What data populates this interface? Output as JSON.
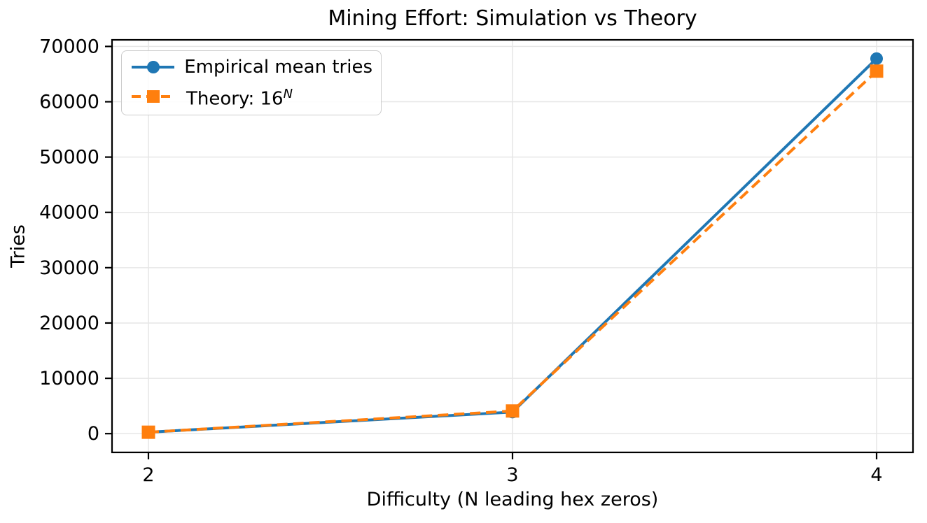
{
  "figure": {
    "title": "Mining Effort: Simulation vs Theory",
    "xlabel": "Difficulty (N leading hex zeros)",
    "ylabel": "Tries"
  },
  "legend": {
    "position": "upper left",
    "items": [
      {
        "label": "Empirical mean tries",
        "marker": "circle",
        "linestyle": "solid",
        "color": "#1f77b4"
      },
      {
        "label_base": "Theory: 16",
        "label_sup": "N",
        "marker": "square",
        "linestyle": "dashed",
        "color": "#ff7f0e"
      }
    ]
  },
  "chart_data": {
    "type": "line",
    "title": "Mining Effort: Simulation vs Theory",
    "xlabel": "Difficulty (N leading hex zeros)",
    "ylabel": "Tries",
    "x": [
      2,
      3,
      4
    ],
    "series": [
      {
        "name": "Empirical mean tries",
        "values": [
          260,
          3900,
          67800
        ],
        "color": "#1f77b4",
        "marker": "circle",
        "linestyle": "solid"
      },
      {
        "name": "Theory: 16^N",
        "values": [
          256,
          4096,
          65536
        ],
        "color": "#ff7f0e",
        "marker": "square",
        "linestyle": "dashed"
      }
    ],
    "xlim": [
      1.9,
      4.1
    ],
    "ylim": [
      -3390,
      71190
    ],
    "xticks": [
      2,
      3,
      4
    ],
    "yticks": [
      0,
      10000,
      20000,
      30000,
      40000,
      50000,
      60000,
      70000
    ],
    "grid": true,
    "grid_color": "#e6e6e6",
    "spine_color": "#000000",
    "legend_position": "upper left"
  }
}
